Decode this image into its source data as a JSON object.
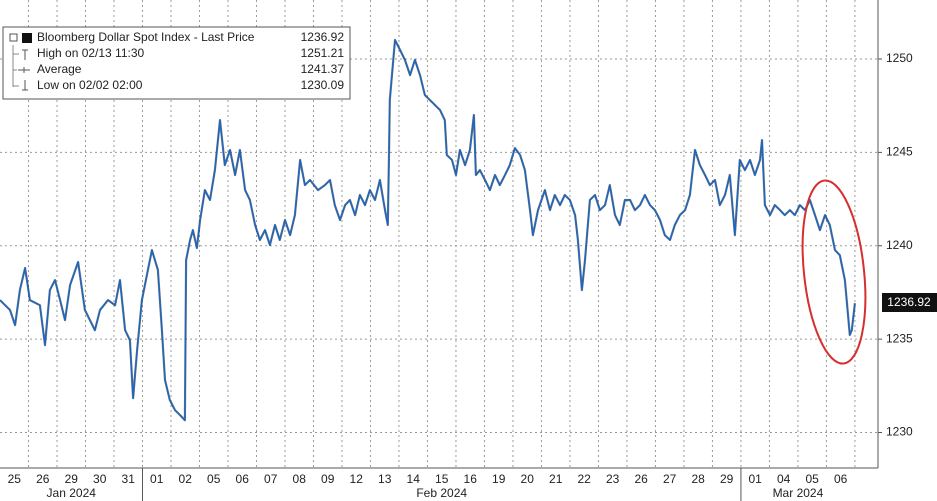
{
  "chart_data": {
    "type": "line",
    "line_color": "#1a66c2",
    "xlim": [
      0,
      30.81
    ],
    "ylim": [
      1228.1,
      1253.16
    ],
    "yticks": [
      1230,
      1235,
      1240,
      1245,
      1250
    ],
    "grid": true,
    "xticks": [
      {
        "value": 0.5,
        "label": "25"
      },
      {
        "value": 1.5,
        "label": "26"
      },
      {
        "value": 2.5,
        "label": "29"
      },
      {
        "value": 3.5,
        "label": "30"
      },
      {
        "value": 4.5,
        "label": "31"
      },
      {
        "value": 5.5,
        "label": "01"
      },
      {
        "value": 6.5,
        "label": "02"
      },
      {
        "value": 7.5,
        "label": "05"
      },
      {
        "value": 8.5,
        "label": "06"
      },
      {
        "value": 9.5,
        "label": "07"
      },
      {
        "value": 10.5,
        "label": "08"
      },
      {
        "value": 11.5,
        "label": "09"
      },
      {
        "value": 12.5,
        "label": "12"
      },
      {
        "value": 13.5,
        "label": "13"
      },
      {
        "value": 14.5,
        "label": "14"
      },
      {
        "value": 15.5,
        "label": "15"
      },
      {
        "value": 16.5,
        "label": "16"
      },
      {
        "value": 17.5,
        "label": "19"
      },
      {
        "value": 18.5,
        "label": "20"
      },
      {
        "value": 19.5,
        "label": "21"
      },
      {
        "value": 20.5,
        "label": "22"
      },
      {
        "value": 21.5,
        "label": "23"
      },
      {
        "value": 22.5,
        "label": "26"
      },
      {
        "value": 23.5,
        "label": "27"
      },
      {
        "value": 24.5,
        "label": "28"
      },
      {
        "value": 25.5,
        "label": "29"
      },
      {
        "value": 26.5,
        "label": "01"
      },
      {
        "value": 27.5,
        "label": "04"
      },
      {
        "value": 28.5,
        "label": "05"
      },
      {
        "value": 29.5,
        "label": "06"
      }
    ],
    "months": [
      {
        "label": "Jan 2024",
        "start": 0,
        "end": 5
      },
      {
        "label": "Feb 2024",
        "start": 5,
        "end": 26
      },
      {
        "label": "Mar 2024",
        "start": 26,
        "end": 30
      }
    ],
    "legend": [
      {
        "label": "Bloomberg Dollar Spot Index - Last Price",
        "value": 1236.92
      },
      {
        "label": "High on 02/13 11:30",
        "value": 1251.21
      },
      {
        "label": "Average",
        "value": 1241.37
      },
      {
        "label": "Low on 02/02 02:00",
        "value": 1230.09
      }
    ],
    "x": [
      0,
      0.35,
      0.53,
      0.7,
      0.88,
      1.05,
      1.4,
      1.58,
      1.75,
      1.93,
      2.11,
      2.28,
      2.46,
      2.74,
      2.98,
      3.33,
      3.51,
      3.79,
      4.04,
      4.21,
      4.39,
      4.56,
      4.67,
      4.81,
      4.98,
      5.19,
      5.33,
      5.54,
      5.68,
      5.79,
      5.96,
      6.14,
      6.32,
      6.49,
      6.53,
      6.67,
      6.77,
      6.91,
      7.02,
      7.19,
      7.37,
      7.54,
      7.72,
      7.89,
      8.07,
      8.25,
      8.42,
      8.6,
      8.77,
      8.95,
      9.12,
      9.3,
      9.47,
      9.65,
      9.82,
      10.0,
      10.18,
      10.35,
      10.53,
      10.7,
      10.88,
      11.16,
      11.4,
      11.58,
      11.75,
      11.93,
      12.11,
      12.28,
      12.46,
      12.63,
      12.81,
      12.98,
      13.16,
      13.33,
      13.51,
      13.61,
      13.65,
      13.68,
      13.86,
      14.04,
      14.21,
      14.39,
      14.56,
      14.74,
      14.91,
      15.09,
      15.26,
      15.44,
      15.61,
      15.68,
      15.86,
      16.0,
      16.14,
      16.32,
      16.49,
      16.63,
      16.7,
      16.84,
      17.02,
      17.19,
      17.37,
      17.54,
      17.72,
      17.89,
      18.07,
      18.25,
      18.42,
      18.6,
      18.7,
      18.88,
      19.12,
      19.3,
      19.47,
      19.65,
      19.82,
      20.0,
      20.18,
      20.28,
      20.42,
      20.53,
      20.7,
      20.88,
      21.05,
      21.23,
      21.4,
      21.58,
      21.75,
      21.93,
      22.11,
      22.28,
      22.46,
      22.63,
      22.81,
      22.98,
      23.16,
      23.33,
      23.51,
      23.68,
      23.86,
      24.04,
      24.21,
      24.39,
      24.56,
      24.74,
      24.91,
      25.09,
      25.26,
      25.44,
      25.61,
      25.79,
      25.96,
      26.14,
      26.32,
      26.49,
      26.67,
      26.74,
      26.84,
      27.02,
      27.19,
      27.37,
      27.54,
      27.72,
      27.89,
      28.07,
      28.25,
      28.42,
      28.6,
      28.77,
      28.95,
      29.12,
      29.3,
      29.47,
      29.65,
      29.82,
      29.89,
      30.0
    ],
    "values": [
      1237.09,
      1236.56,
      1235.75,
      1237.63,
      1238.81,
      1237.09,
      1236.82,
      1234.68,
      1237.63,
      1238.16,
      1237.09,
      1236.02,
      1237.9,
      1239.13,
      1236.56,
      1235.48,
      1236.56,
      1237.09,
      1236.82,
      1238.16,
      1235.48,
      1234.95,
      1231.84,
      1234.41,
      1237.09,
      1238.7,
      1239.77,
      1238.7,
      1235.48,
      1232.81,
      1231.74,
      1231.2,
      1230.93,
      1230.66,
      1239.23,
      1240.31,
      1240.84,
      1239.88,
      1241.38,
      1242.98,
      1242.45,
      1244.05,
      1246.73,
      1244.32,
      1245.13,
      1243.79,
      1245.13,
      1242.98,
      1242.45,
      1241.11,
      1240.31,
      1240.84,
      1240.04,
      1241.11,
      1240.31,
      1241.38,
      1240.57,
      1241.64,
      1244.59,
      1243.25,
      1243.52,
      1242.98,
      1243.25,
      1243.52,
      1242.18,
      1241.38,
      1242.18,
      1242.45,
      1241.64,
      1242.72,
      1242.18,
      1242.98,
      1242.45,
      1243.52,
      1241.91,
      1241.11,
      1244.86,
      1247.8,
      1251.02,
      1250.48,
      1249.95,
      1249.14,
      1249.95,
      1249.14,
      1248.07,
      1247.8,
      1247.54,
      1247.27,
      1246.73,
      1244.86,
      1244.59,
      1243.79,
      1245.13,
      1244.32,
      1245.13,
      1247.0,
      1243.79,
      1244.05,
      1243.52,
      1242.98,
      1243.79,
      1243.25,
      1243.79,
      1244.32,
      1245.23,
      1244.86,
      1244.05,
      1241.91,
      1240.57,
      1241.91,
      1242.98,
      1241.91,
      1242.72,
      1242.18,
      1242.72,
      1242.45,
      1241.64,
      1240.31,
      1237.63,
      1239.23,
      1242.45,
      1242.72,
      1241.91,
      1242.18,
      1243.25,
      1241.64,
      1241.11,
      1242.45,
      1242.45,
      1241.91,
      1242.18,
      1242.72,
      1242.18,
      1241.91,
      1241.38,
      1240.57,
      1240.31,
      1241.11,
      1241.64,
      1241.91,
      1242.72,
      1245.13,
      1244.32,
      1243.79,
      1243.25,
      1243.52,
      1242.18,
      1242.72,
      1243.79,
      1240.57,
      1244.59,
      1244.05,
      1244.59,
      1243.79,
      1244.59,
      1245.66,
      1242.18,
      1241.64,
      1242.18,
      1241.91,
      1241.64,
      1241.91,
      1241.64,
      1242.18,
      1241.91,
      1242.45,
      1241.64,
      1240.84,
      1241.64,
      1241.11,
      1239.77,
      1239.5,
      1238.16,
      1235.22,
      1235.48,
      1236.92
    ]
  }
}
